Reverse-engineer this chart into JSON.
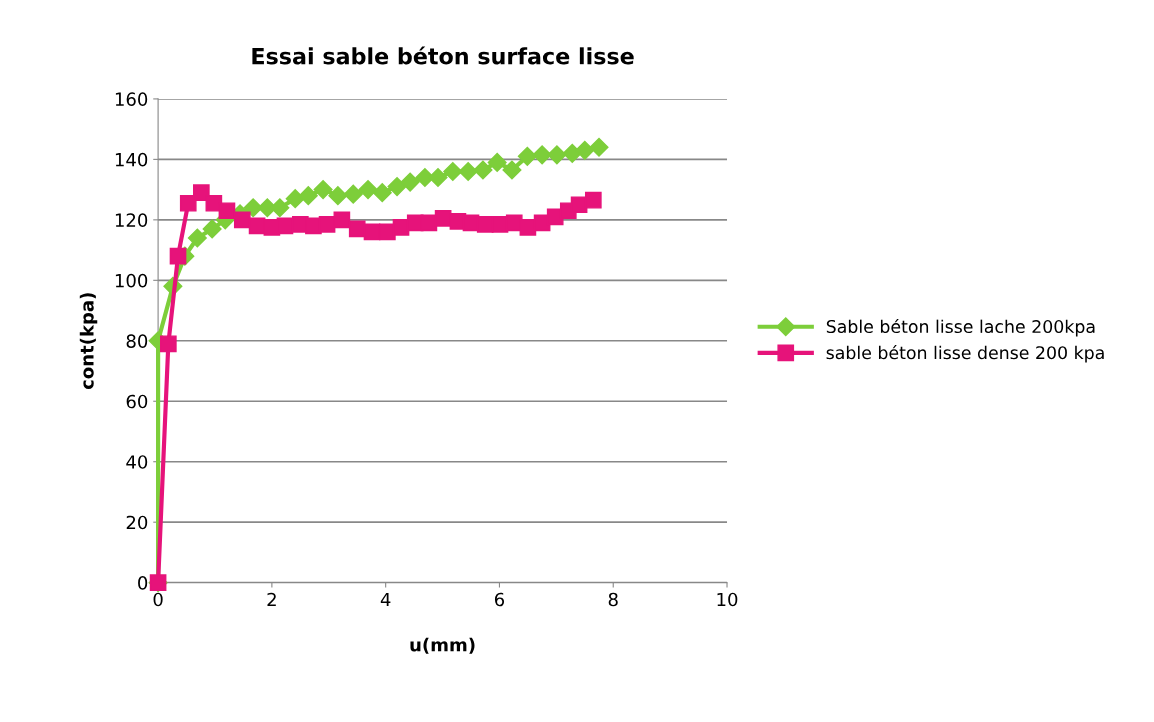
{
  "chart_data": {
    "type": "line",
    "title": "Essai sable béton surface lisse",
    "xlabel": "u(mm)",
    "ylabel": "cont(kpa)",
    "xlim": [
      0,
      10
    ],
    "xticks": [
      0,
      2,
      4,
      6,
      8,
      10
    ],
    "ylim": [
      0,
      160
    ],
    "yticks": [
      0,
      20,
      40,
      60,
      80,
      100,
      120,
      140,
      160
    ],
    "grid": "y",
    "legend": "right",
    "series": [
      {
        "name": "Sable béton lisse lache 200kpa",
        "color": "#7dce3a",
        "marker": "diamond",
        "x": [
          0,
          0,
          0.26,
          0.47,
          0.69,
          0.95,
          1.18,
          1.44,
          1.67,
          1.92,
          2.14,
          2.41,
          2.64,
          2.9,
          3.16,
          3.43,
          3.69,
          3.94,
          4.2,
          4.43,
          4.69,
          4.92,
          5.18,
          5.45,
          5.71,
          5.96,
          6.22,
          6.49,
          6.75,
          7.01,
          7.28,
          7.5,
          7.75
        ],
        "values": [
          0,
          80,
          98,
          108,
          114,
          117,
          120,
          122,
          124,
          124,
          124,
          127,
          128,
          130,
          128,
          128.5,
          130,
          129,
          131,
          132.5,
          134,
          134,
          136,
          136,
          136.5,
          139,
          136.5,
          141,
          141.5,
          141.5,
          142,
          143,
          144
        ]
      },
      {
        "name": "sable béton lisse dense 200 kpa",
        "color": "#e6137a",
        "marker": "square",
        "x": [
          0,
          0.18,
          0.35,
          0.53,
          0.76,
          0.98,
          1.21,
          1.48,
          1.74,
          2.0,
          2.23,
          2.5,
          2.73,
          2.97,
          3.23,
          3.5,
          3.76,
          4.03,
          4.27,
          4.52,
          4.76,
          5.01,
          5.27,
          5.5,
          5.75,
          6.01,
          6.26,
          6.5,
          6.75,
          6.98,
          7.21,
          7.4,
          7.65
        ],
        "values": [
          0,
          79,
          108,
          125.5,
          129,
          125.5,
          123,
          120,
          118,
          117.5,
          118,
          118.5,
          118,
          118.5,
          120,
          117,
          116,
          116,
          117.5,
          119,
          119,
          120.5,
          119.5,
          119,
          118.5,
          118.5,
          119,
          117.5,
          119,
          121,
          123,
          125,
          126.5
        ]
      }
    ]
  }
}
